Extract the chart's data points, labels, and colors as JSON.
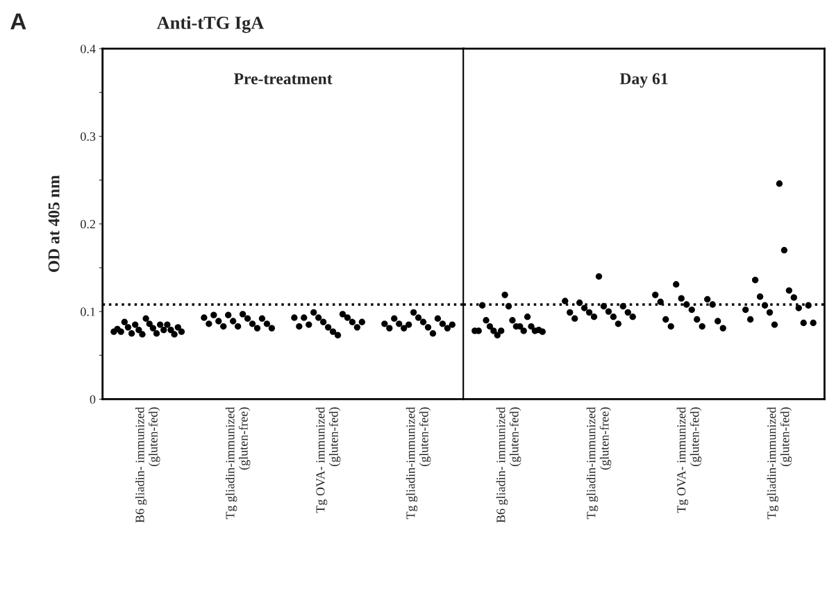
{
  "chart_data": [
    {
      "type": "scatter",
      "title": "Anti-tTG IgA",
      "subtitle": "Pre-treatment",
      "ylabel": "OD at 405 nm",
      "annotations": [
        "A"
      ],
      "categories": [
        "B6 gliadin- immunized\n(gluten-fed)",
        "Tg gliadin-immunized\n(gluten-free)",
        "Tg OVA- immunized\n(gluten-fed)",
        "Tg gliadin-immunized\n(gluten-fed)"
      ],
      "series": [
        {
          "color": "#000000",
          "x": [
            "B6 gliadin- immunized\n(gluten-fed)",
            "B6 gliadin- immunized\n(gluten-fed)",
            "B6 gliadin- immunized\n(gluten-fed)",
            "B6 gliadin- immunized\n(gluten-fed)",
            "B6 gliadin- immunized\n(gluten-fed)",
            "B6 gliadin- immunized\n(gluten-fed)",
            "B6 gliadin- immunized\n(gluten-fed)",
            "B6 gliadin- immunized\n(gluten-fed)",
            "B6 gliadin- immunized\n(gluten-fed)",
            "B6 gliadin- immunized\n(gluten-fed)",
            "B6 gliadin- immunized\n(gluten-fed)",
            "B6 gliadin- immunized\n(gluten-fed)",
            "B6 gliadin- immunized\n(gluten-fed)",
            "B6 gliadin- immunized\n(gluten-fed)",
            "B6 gliadin- immunized\n(gluten-fed)",
            "B6 gliadin- immunized\n(gluten-fed)",
            "B6 gliadin- immunized\n(gluten-fed)",
            "B6 gliadin- immunized\n(gluten-fed)",
            "B6 gliadin- immunized\n(gluten-fed)",
            "B6 gliadin- immunized\n(gluten-fed)",
            "Tg gliadin-immunized\n(gluten-free)",
            "Tg gliadin-immunized\n(gluten-free)",
            "Tg gliadin-immunized\n(gluten-free)",
            "Tg gliadin-immunized\n(gluten-free)",
            "Tg gliadin-immunized\n(gluten-free)",
            "Tg gliadin-immunized\n(gluten-free)",
            "Tg gliadin-immunized\n(gluten-free)",
            "Tg gliadin-immunized\n(gluten-free)",
            "Tg gliadin-immunized\n(gluten-free)",
            "Tg gliadin-immunized\n(gluten-free)",
            "Tg gliadin-immunized\n(gluten-free)",
            "Tg gliadin-immunized\n(gluten-free)",
            "Tg gliadin-immunized\n(gluten-free)",
            "Tg gliadin-immunized\n(gluten-free)",
            "Tg gliadin-immunized\n(gluten-free)",
            "Tg OVA- immunized\n(gluten-fed)",
            "Tg OVA- immunized\n(gluten-fed)",
            "Tg OVA- immunized\n(gluten-fed)",
            "Tg OVA- immunized\n(gluten-fed)",
            "Tg OVA- immunized\n(gluten-fed)",
            "Tg OVA- immunized\n(gluten-fed)",
            "Tg OVA- immunized\n(gluten-fed)",
            "Tg OVA- immunized\n(gluten-fed)",
            "Tg OVA- immunized\n(gluten-fed)",
            "Tg OVA- immunized\n(gluten-fed)",
            "Tg OVA- immunized\n(gluten-fed)",
            "Tg OVA- immunized\n(gluten-fed)",
            "Tg OVA- immunized\n(gluten-fed)",
            "Tg OVA- immunized\n(gluten-fed)",
            "Tg OVA- immunized\n(gluten-fed)",
            "Tg gliadin-immunized\n(gluten-fed)",
            "Tg gliadin-immunized\n(gluten-fed)",
            "Tg gliadin-immunized\n(gluten-fed)",
            "Tg gliadin-immunized\n(gluten-fed)",
            "Tg gliadin-immunized\n(gluten-fed)",
            "Tg gliadin-immunized\n(gluten-fed)",
            "Tg gliadin-immunized\n(gluten-fed)",
            "Tg gliadin-immunized\n(gluten-fed)",
            "Tg gliadin-immunized\n(gluten-fed)",
            "Tg gliadin-immunized\n(gluten-fed)",
            "Tg gliadin-immunized\n(gluten-fed)",
            "Tg gliadin-immunized\n(gluten-fed)",
            "Tg gliadin-immunized\n(gluten-fed)",
            "Tg gliadin-immunized\n(gluten-fed)",
            "Tg gliadin-immunized\n(gluten-fed)"
          ],
          "values": [
            0.077,
            0.08,
            0.077,
            0.088,
            0.082,
            0.075,
            0.085,
            0.079,
            0.074,
            0.092,
            0.086,
            0.081,
            0.075,
            0.085,
            0.079,
            0.085,
            0.079,
            0.074,
            0.082,
            0.077,
            0.093,
            0.086,
            0.096,
            0.089,
            0.083,
            0.096,
            0.089,
            0.083,
            0.097,
            0.092,
            0.086,
            0.081,
            0.092,
            0.086,
            0.081,
            0.093,
            0.083,
            0.093,
            0.085,
            0.099,
            0.093,
            0.088,
            0.082,
            0.077,
            0.073,
            0.097,
            0.093,
            0.088,
            0.082,
            0.088,
            0.086,
            0.081,
            0.092,
            0.086,
            0.081,
            0.085,
            0.099,
            0.093,
            0.088,
            0.082,
            0.075,
            0.092,
            0.086,
            0.081,
            0.085
          ]
        }
      ],
      "ylim": [
        0,
        0.4
      ],
      "yticks": [
        0,
        {
          "value": 0.05,
          "label": null
        },
        0.1,
        {
          "value": 0.15,
          "label": null
        },
        0.2,
        {
          "value": 0.25,
          "label": null
        },
        0.3,
        {
          "value": 0.35,
          "label": null
        },
        0.4
      ],
      "ref_lines": [
        {
          "axis": "y",
          "value": 0.108,
          "line_style": "dotted"
        }
      ],
      "marker": "circle",
      "legend": false,
      "grid": false
    },
    {
      "type": "scatter",
      "subtitle": "Day 61",
      "tick_labels": "x",
      "categories": [
        "B6 gliadin- immunized\n(gluten-fed)",
        "Tg gliadin-immunized\n(gluten-free)",
        "Tg OVA- immunized\n(gluten-fed)",
        "Tg gliadin-immunized\n(gluten-fed)"
      ],
      "series": [
        {
          "color": "#000000",
          "x": [
            "B6 gliadin- immunized\n(gluten-fed)",
            "B6 gliadin- immunized\n(gluten-fed)",
            "B6 gliadin- immunized\n(gluten-fed)",
            "B6 gliadin- immunized\n(gluten-fed)",
            "B6 gliadin- immunized\n(gluten-fed)",
            "B6 gliadin- immunized\n(gluten-fed)",
            "B6 gliadin- immunized\n(gluten-fed)",
            "B6 gliadin- immunized\n(gluten-fed)",
            "B6 gliadin- immunized\n(gluten-fed)",
            "B6 gliadin- immunized\n(gluten-fed)",
            "B6 gliadin- immunized\n(gluten-fed)",
            "B6 gliadin- immunized\n(gluten-fed)",
            "B6 gliadin- immunized\n(gluten-fed)",
            "B6 gliadin- immunized\n(gluten-fed)",
            "B6 gliadin- immunized\n(gluten-fed)",
            "B6 gliadin- immunized\n(gluten-fed)",
            "B6 gliadin- immunized\n(gluten-fed)",
            "B6 gliadin- immunized\n(gluten-fed)",
            "B6 gliadin- immunized\n(gluten-fed)",
            "Tg gliadin-immunized\n(gluten-free)",
            "Tg gliadin-immunized\n(gluten-free)",
            "Tg gliadin-immunized\n(gluten-free)",
            "Tg gliadin-immunized\n(gluten-free)",
            "Tg gliadin-immunized\n(gluten-free)",
            "Tg gliadin-immunized\n(gluten-free)",
            "Tg gliadin-immunized\n(gluten-free)",
            "Tg gliadin-immunized\n(gluten-free)",
            "Tg gliadin-immunized\n(gluten-free)",
            "Tg gliadin-immunized\n(gluten-free)",
            "Tg gliadin-immunized\n(gluten-free)",
            "Tg gliadin-immunized\n(gluten-free)",
            "Tg gliadin-immunized\n(gluten-free)",
            "Tg gliadin-immunized\n(gluten-free)",
            "Tg gliadin-immunized\n(gluten-free)",
            "Tg OVA- immunized\n(gluten-fed)",
            "Tg OVA- immunized\n(gluten-fed)",
            "Tg OVA- immunized\n(gluten-fed)",
            "Tg OVA- immunized\n(gluten-fed)",
            "Tg OVA- immunized\n(gluten-fed)",
            "Tg OVA- immunized\n(gluten-fed)",
            "Tg OVA- immunized\n(gluten-fed)",
            "Tg OVA- immunized\n(gluten-fed)",
            "Tg OVA- immunized\n(gluten-fed)",
            "Tg OVA- immunized\n(gluten-fed)",
            "Tg OVA- immunized\n(gluten-fed)",
            "Tg OVA- immunized\n(gluten-fed)",
            "Tg OVA- immunized\n(gluten-fed)",
            "Tg OVA- immunized\n(gluten-fed)",
            "Tg gliadin-immunized\n(gluten-fed)",
            "Tg gliadin-immunized\n(gluten-fed)",
            "Tg gliadin-immunized\n(gluten-fed)",
            "Tg gliadin-immunized\n(gluten-fed)",
            "Tg gliadin-immunized\n(gluten-fed)",
            "Tg gliadin-immunized\n(gluten-fed)",
            "Tg gliadin-immunized\n(gluten-fed)",
            "Tg gliadin-immunized\n(gluten-fed)",
            "Tg gliadin-immunized\n(gluten-fed)",
            "Tg gliadin-immunized\n(gluten-fed)",
            "Tg gliadin-immunized\n(gluten-fed)",
            "Tg gliadin-immunized\n(gluten-fed)",
            "Tg gliadin-immunized\n(gluten-fed)",
            "Tg gliadin-immunized\n(gluten-fed)",
            "Tg gliadin-immunized\n(gluten-fed)"
          ],
          "values": [
            0.078,
            0.078,
            0.107,
            0.09,
            0.083,
            0.078,
            0.073,
            0.078,
            0.119,
            0.106,
            0.09,
            0.083,
            0.083,
            0.078,
            0.094,
            0.083,
            0.078,
            0.079,
            0.077,
            0.112,
            0.099,
            0.092,
            0.11,
            0.104,
            0.099,
            0.094,
            0.14,
            0.106,
            0.1,
            0.094,
            0.086,
            0.106,
            0.099,
            0.094,
            0.119,
            0.111,
            0.091,
            0.083,
            0.131,
            0.115,
            0.108,
            0.102,
            0.091,
            0.083,
            0.114,
            0.108,
            0.089,
            0.081,
            0.102,
            0.091,
            0.136,
            0.117,
            0.107,
            0.099,
            0.085,
            0.246,
            0.17,
            0.124,
            0.116,
            0.104,
            0.087,
            0.107,
            0.087
          ]
        }
      ],
      "ylim": [
        0,
        0.4
      ],
      "ref_lines": [
        {
          "axis": "y",
          "value": 0.108,
          "line_style": "dotted"
        }
      ],
      "marker": "circle",
      "legend": false,
      "grid": false
    }
  ]
}
